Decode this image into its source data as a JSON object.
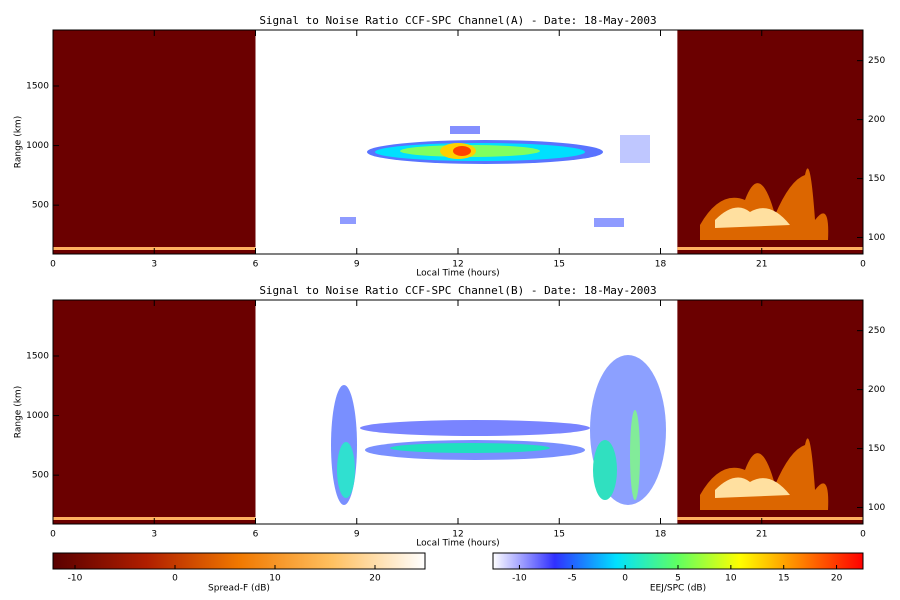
{
  "chart_data": [
    {
      "type": "heatmap",
      "title": "Signal to Noise Ratio CCF-SPC Channel(A) - Date: 18-May-2003",
      "xlabel": "Local Time (hours)",
      "ylabel": "Range (km)",
      "xlim": [
        0,
        24
      ],
      "xticks": [
        0,
        3,
        6,
        9,
        12,
        15,
        18,
        21,
        {
          "value": 24,
          "label": "0"
        }
      ],
      "ylim": [
        90,
        1970
      ],
      "yticks": [
        500,
        1000,
        1500
      ],
      "y2lim": [
        86,
        276
      ],
      "y2ticks": [
        100,
        150,
        200,
        250
      ],
      "spread_f_windows": [
        [
          0,
          6
        ],
        [
          18.5,
          24
        ]
      ]
    },
    {
      "type": "heatmap",
      "title": "Signal to Noise Ratio CCF-SPC Channel(B) - Date: 18-May-2003",
      "xlabel": "Local Time (hours)",
      "ylabel": "Range (km)",
      "xlim": [
        0,
        24
      ],
      "xticks": [
        0,
        3,
        6,
        9,
        12,
        15,
        18,
        21,
        {
          "value": 24,
          "label": "0"
        }
      ],
      "ylim": [
        90,
        1970
      ],
      "yticks": [
        500,
        1000,
        1500
      ],
      "y2lim": [
        86,
        276
      ],
      "y2ticks": [
        100,
        150,
        200,
        250
      ],
      "spread_f_windows": [
        [
          0,
          6
        ],
        [
          18.5,
          24
        ]
      ]
    }
  ],
  "colorbars": [
    {
      "label": "Spread-F (dB)",
      "lim": [
        -12.2,
        25
      ],
      "ticks": [
        -10,
        0,
        10,
        20
      ],
      "colors": [
        "#5a0000",
        "#b01e00",
        "#f07800",
        "#ffc060",
        "#ffffff"
      ]
    },
    {
      "label": "EEJ/SPC (dB)",
      "lim": [
        -12.5,
        22.5
      ],
      "ticks": [
        -10,
        -5,
        0,
        5,
        10,
        15,
        20
      ],
      "colors": [
        "#ffffff",
        "#3030ff",
        "#00e0ff",
        "#60ff60",
        "#ffff00",
        "#ff8000",
        "#ff0000"
      ]
    }
  ]
}
